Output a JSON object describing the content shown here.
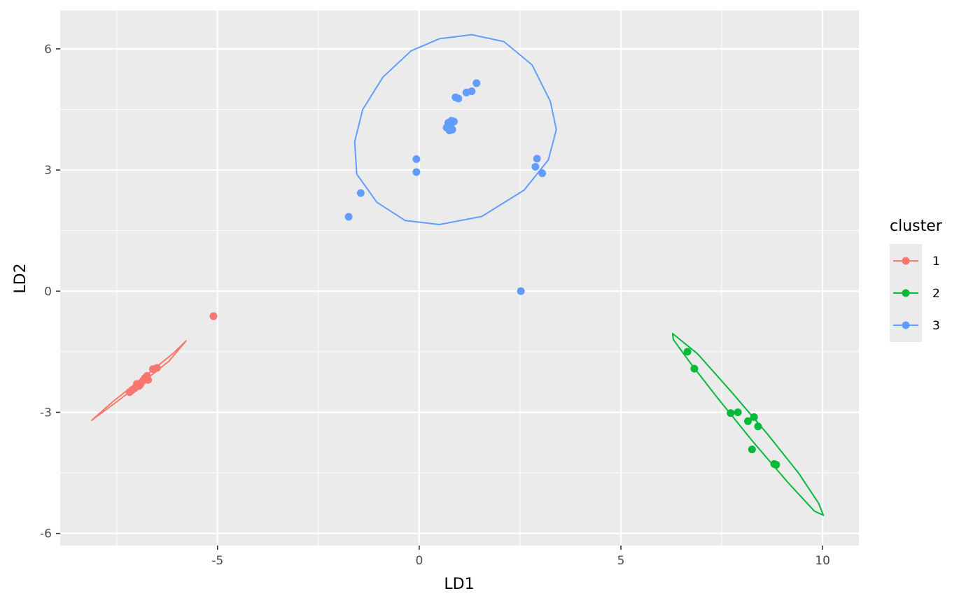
{
  "chart_data": {
    "type": "scatter",
    "xlabel": "LD1",
    "ylabel": "LD2",
    "xlim": [
      -8.9,
      10.9
    ],
    "ylim": [
      -6.3,
      6.95
    ],
    "x_ticks": [
      -5,
      0,
      5,
      10
    ],
    "x_tick_labels": [
      "-5",
      "0",
      "5",
      "10"
    ],
    "x_minor": [
      -7.5,
      -2.5,
      2.5,
      7.5
    ],
    "y_ticks": [
      -6,
      -3,
      0,
      3,
      6
    ],
    "y_tick_labels": [
      "-6",
      "-3",
      "0",
      "3",
      "6"
    ],
    "y_minor": [
      -4.5,
      -1.5,
      1.5,
      4.5
    ],
    "grid": true,
    "legend": {
      "title": "cluster",
      "position": "right",
      "labels": [
        "1",
        "2",
        "3"
      ]
    },
    "series": [
      {
        "name": "1",
        "color": "#F8766D",
        "points": [
          [
            -5.1,
            -0.62
          ],
          [
            -6.5,
            -1.9
          ],
          [
            -6.6,
            -1.93
          ],
          [
            -6.75,
            -2.1
          ],
          [
            -6.72,
            -2.2
          ],
          [
            -6.8,
            -2.15
          ],
          [
            -6.9,
            -2.28
          ],
          [
            -6.95,
            -2.35
          ],
          [
            -7.0,
            -2.3
          ],
          [
            -6.85,
            -2.22
          ],
          [
            -7.05,
            -2.4
          ],
          [
            -7.12,
            -2.45
          ],
          [
            -7.18,
            -2.5
          ],
          [
            -6.92,
            -2.32
          ]
        ],
        "ellipse": [
          [
            -8.12,
            -3.2
          ],
          [
            -7.5,
            -2.74
          ],
          [
            -6.8,
            -2.21
          ],
          [
            -6.2,
            -1.73
          ],
          [
            -5.78,
            -1.23
          ],
          [
            -6.1,
            -1.54
          ],
          [
            -6.9,
            -2.19
          ],
          [
            -7.6,
            -2.74
          ],
          [
            -8.12,
            -3.2
          ]
        ]
      },
      {
        "name": "2",
        "color": "#00BA38",
        "points": [
          [
            6.65,
            -1.5
          ],
          [
            6.82,
            -1.92
          ],
          [
            7.72,
            -3.02
          ],
          [
            7.9,
            -3.0
          ],
          [
            8.15,
            -3.22
          ],
          [
            8.3,
            -3.12
          ],
          [
            8.4,
            -3.35
          ],
          [
            8.25,
            -3.92
          ],
          [
            8.8,
            -4.28
          ],
          [
            8.85,
            -4.3
          ]
        ],
        "ellipse": [
          [
            6.28,
            -1.05
          ],
          [
            6.9,
            -1.55
          ],
          [
            7.7,
            -2.45
          ],
          [
            8.6,
            -3.5
          ],
          [
            9.4,
            -4.5
          ],
          [
            9.9,
            -5.25
          ],
          [
            10.02,
            -5.55
          ],
          [
            9.8,
            -5.45
          ],
          [
            9.15,
            -4.75
          ],
          [
            8.25,
            -3.7
          ],
          [
            7.4,
            -2.65
          ],
          [
            6.7,
            -1.75
          ],
          [
            6.3,
            -1.2
          ],
          [
            6.28,
            -1.05
          ]
        ]
      },
      {
        "name": "3",
        "color": "#619CFF",
        "points": [
          [
            1.42,
            5.15
          ],
          [
            1.3,
            4.95
          ],
          [
            1.17,
            4.92
          ],
          [
            0.97,
            4.77
          ],
          [
            0.9,
            4.8
          ],
          [
            0.86,
            4.2
          ],
          [
            0.8,
            4.22
          ],
          [
            0.72,
            4.17
          ],
          [
            0.82,
            4.0
          ],
          [
            0.75,
            3.98
          ],
          [
            0.68,
            4.05
          ],
          [
            0.78,
            4.12
          ],
          [
            -0.07,
            3.27
          ],
          [
            -0.07,
            2.95
          ],
          [
            -1.45,
            2.43
          ],
          [
            -1.75,
            1.84
          ],
          [
            2.92,
            3.28
          ],
          [
            2.88,
            3.08
          ],
          [
            3.05,
            2.92
          ],
          [
            2.52,
            0.0
          ]
        ],
        "ellipse": [
          [
            1.3,
            6.35
          ],
          [
            2.1,
            6.18
          ],
          [
            2.8,
            5.6
          ],
          [
            3.25,
            4.7
          ],
          [
            3.4,
            4.0
          ],
          [
            3.2,
            3.25
          ],
          [
            2.6,
            2.5
          ],
          [
            1.55,
            1.85
          ],
          [
            0.5,
            1.65
          ],
          [
            -0.35,
            1.75
          ],
          [
            -1.05,
            2.2
          ],
          [
            -1.55,
            2.9
          ],
          [
            -1.6,
            3.7
          ],
          [
            -1.4,
            4.5
          ],
          [
            -0.9,
            5.3
          ],
          [
            -0.2,
            5.95
          ],
          [
            0.5,
            6.25
          ],
          [
            1.3,
            6.35
          ]
        ]
      }
    ]
  }
}
